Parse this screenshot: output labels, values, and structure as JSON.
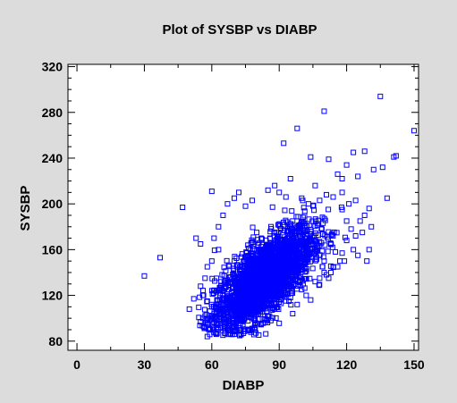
{
  "chart_data": {
    "type": "scatter",
    "title": "Plot of SYSBP vs DIABP",
    "xlabel": "DIABP",
    "ylabel": "SYSBP",
    "xlim": [
      -4,
      152
    ],
    "ylim": [
      72,
      322
    ],
    "xticks": [
      0,
      30,
      60,
      90,
      120,
      150
    ],
    "yticks": [
      80,
      120,
      160,
      200,
      240,
      280,
      320
    ],
    "grid": false,
    "marker": "open-square",
    "series": [
      {
        "color": "#0000ff",
        "points": [
          [
            30,
            137
          ],
          [
            37,
            153
          ],
          [
            47,
            197
          ],
          [
            135,
            294
          ],
          [
            150,
            264
          ],
          [
            110,
            281
          ],
          [
            98,
            266
          ],
          [
            92,
            253
          ],
          [
            142,
            242
          ],
          [
            141,
            241
          ],
          [
            123,
            245
          ],
          [
            128,
            246
          ],
          [
            112,
            239
          ],
          [
            104,
            241
          ],
          [
            136,
            232
          ],
          [
            132,
            230
          ],
          [
            120,
            234
          ],
          [
            116,
            226
          ],
          [
            125,
            224
          ],
          [
            118,
            222
          ],
          [
            106,
            216
          ],
          [
            95,
            222
          ],
          [
            88,
            216
          ],
          [
            60,
            211
          ],
          [
            53,
            170
          ],
          [
            55,
            165
          ],
          [
            50,
            108
          ],
          [
            52,
            117
          ],
          [
            55,
            97
          ],
          [
            58,
            84
          ],
          [
            62,
            86
          ],
          [
            66,
            87
          ],
          [
            138,
            205
          ],
          [
            130,
            196
          ],
          [
            128,
            190
          ],
          [
            126,
            185
          ],
          [
            131,
            180
          ],
          [
            127,
            175
          ],
          [
            130,
            160
          ],
          [
            129,
            150
          ],
          [
            113,
            165
          ],
          [
            115,
            158
          ],
          [
            117,
            150
          ],
          [
            114,
            145
          ],
          [
            110,
            140
          ],
          [
            108,
            135
          ],
          [
            106,
            132
          ],
          [
            112,
            135
          ],
          [
            100,
            125
          ],
          [
            95,
            118
          ],
          [
            102,
            120
          ],
          [
            104,
            116
          ],
          [
            98,
            112
          ],
          [
            96,
            104
          ],
          [
            88,
            108
          ],
          [
            82,
            95
          ],
          [
            79,
            92
          ],
          [
            73,
            90
          ],
          [
            70,
            86
          ],
          [
            68,
            93
          ],
          [
            64,
            92
          ],
          [
            62,
            95
          ],
          [
            57,
            102
          ],
          [
            59,
            98
          ],
          [
            63,
            180
          ],
          [
            65,
            190
          ],
          [
            67,
            200
          ],
          [
            70,
            205
          ],
          [
            75,
            198
          ],
          [
            72,
            210
          ],
          [
            78,
            203
          ],
          [
            85,
            212
          ],
          [
            90,
            210
          ],
          [
            93,
            206
          ],
          [
            100,
            205
          ],
          [
            103,
            200
          ],
          [
            108,
            203
          ],
          [
            111,
            208
          ],
          [
            114,
            206
          ],
          [
            118,
            210
          ],
          [
            121,
            200
          ],
          [
            124,
            203
          ],
          [
            118,
            195
          ],
          [
            120,
            185
          ],
          [
            122,
            178
          ],
          [
            124,
            172
          ],
          [
            120,
            168
          ],
          [
            123,
            160
          ],
          [
            125,
            155
          ],
          [
            119,
            150
          ],
          [
            116,
            145
          ],
          [
            113,
            140
          ],
          [
            111,
            138
          ],
          [
            118,
            157
          ],
          [
            61,
            170
          ],
          [
            63,
            160
          ],
          [
            60,
            150
          ],
          [
            58,
            145
          ],
          [
            57,
            135
          ],
          [
            55,
            128
          ],
          [
            56,
            120
          ],
          [
            58,
            115
          ],
          [
            60,
            110
          ],
          [
            62,
            105
          ],
          [
            80,
            175
          ],
          [
            82,
            170
          ],
          [
            84,
            160
          ],
          [
            86,
            150
          ],
          [
            88,
            145
          ],
          [
            90,
            140
          ],
          [
            92,
            135
          ],
          [
            94,
            130
          ],
          [
            96,
            185
          ],
          [
            98,
            180
          ],
          [
            100,
            175
          ],
          [
            102,
            170
          ],
          [
            104,
            165
          ],
          [
            106,
            160
          ],
          [
            108,
            155
          ],
          [
            110,
            150
          ]
        ]
      }
    ]
  }
}
